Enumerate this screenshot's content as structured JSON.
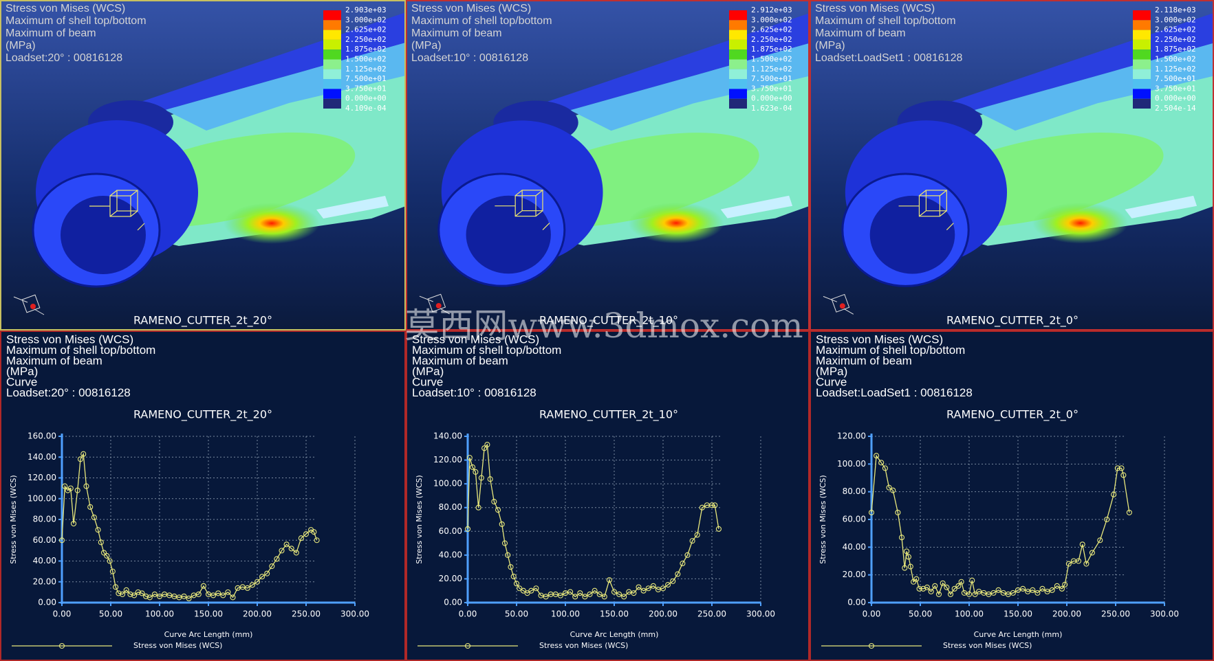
{
  "views": [
    {
      "header": [
        "Stress von Mises (WCS)",
        "Maximum of shell top/bottom",
        "Maximum of beam",
        "(MPa)",
        "Loadset:20° : 00816128"
      ],
      "legend_labels": [
        "2.903e+03",
        "3.000e+02",
        "2.625e+02",
        "2.250e+02",
        "1.875e+02",
        "1.500e+02",
        "1.125e+02",
        "7.500e+01",
        "3.750e+01",
        "0.000e+00",
        "4.109e-04"
      ],
      "caption": "RAMENO_CUTTER_2t_20°"
    },
    {
      "header": [
        "Stress von Mises (WCS)",
        "Maximum of shell top/bottom",
        "Maximum of beam",
        "(MPa)",
        "Loadset:10° : 00816128"
      ],
      "legend_labels": [
        "2.912e+03",
        "3.000e+02",
        "2.625e+02",
        "2.250e+02",
        "1.875e+02",
        "1.500e+02",
        "1.125e+02",
        "7.500e+01",
        "3.750e+01",
        "0.000e+00",
        "1.623e-04"
      ],
      "caption": "RAMENO_CUTTER_2t_10°"
    },
    {
      "header": [
        "Stress von Mises (WCS)",
        "Maximum of shell top/bottom",
        "Maximum of beam",
        "(MPa)",
        "Loadset:LoadSet1 : 00816128"
      ],
      "legend_labels": [
        "2.118e+03",
        "3.000e+02",
        "2.625e+02",
        "2.250e+02",
        "1.875e+02",
        "1.500e+02",
        "1.125e+02",
        "7.500e+01",
        "3.750e+01",
        "0.000e+00",
        "2.504e-14"
      ],
      "caption": "RAMENO_CUTTER_2t_0°"
    }
  ],
  "chart_data": [
    {
      "type": "line",
      "header": [
        "Stress von Mises (WCS)",
        "Maximum of shell top/bottom",
        "Maximum of beam",
        "(MPa)",
        "Curve",
        "Loadset:20° : 00816128"
      ],
      "title": "RAMENO_CUTTER_2t_20°",
      "x_label": "Curve Arc Length (mm)",
      "y_label": "Stress von Mises (WCS)",
      "x": [
        0,
        3,
        6,
        9,
        12,
        16,
        19,
        22,
        25,
        29,
        33,
        37,
        40,
        43,
        46,
        49,
        52,
        55,
        58,
        62,
        66,
        70,
        74,
        78,
        82,
        86,
        90,
        95,
        100,
        105,
        110,
        115,
        120,
        125,
        130,
        135,
        140,
        145,
        150,
        155,
        160,
        165,
        170,
        175,
        180,
        185,
        190,
        195,
        200,
        205,
        210,
        215,
        220,
        225,
        230,
        235,
        240,
        245,
        250,
        255,
        258,
        261
      ],
      "series": [
        {
          "name": "Stress von Mises (WCS)",
          "color": "#e8e87c",
          "values": [
            60,
            112,
            108,
            110,
            76,
            108,
            138,
            143,
            112,
            92,
            82,
            70,
            58,
            48,
            45,
            40,
            30,
            15,
            9,
            8,
            12,
            8,
            7,
            10,
            9,
            6,
            5,
            8,
            6,
            8,
            7,
            6,
            5,
            6,
            4,
            7,
            8,
            16,
            8,
            7,
            9,
            7,
            10,
            5,
            14,
            15,
            14,
            17,
            20,
            25,
            28,
            35,
            42,
            50,
            56,
            52,
            48,
            62,
            66,
            70,
            68,
            60
          ]
        }
      ],
      "xlim": [
        0,
        300
      ],
      "ylim": [
        0,
        160
      ],
      "xticks": [
        {
          "value": 0,
          "label": "0.00"
        },
        {
          "value": 50,
          "label": "50.00"
        },
        {
          "value": 100,
          "label": "100.00"
        },
        {
          "value": 150,
          "label": "150.00"
        },
        {
          "value": 200,
          "label": "200.00"
        },
        {
          "value": 250,
          "label": "250.00"
        },
        {
          "value": 300,
          "label": "300.00"
        }
      ],
      "yticks": [
        {
          "value": 0,
          "label": "0.00"
        },
        {
          "value": 20,
          "label": "20.00"
        },
        {
          "value": 40,
          "label": "40.00"
        },
        {
          "value": 60,
          "label": "60.00"
        },
        {
          "value": 80,
          "label": "80.00"
        },
        {
          "value": 100,
          "label": "100.00"
        },
        {
          "value": 120,
          "label": "120.00"
        },
        {
          "value": 140,
          "label": "140.00"
        },
        {
          "value": 160,
          "label": "160.00"
        }
      ],
      "grid": true
    },
    {
      "type": "line",
      "header": [
        "Stress von Mises (WCS)",
        "Maximum of shell top/bottom",
        "Maximum of beam",
        "(MPa)",
        "Curve",
        "Loadset:10° : 00816128"
      ],
      "title": "RAMENO_CUTTER_2t_10°",
      "x_label": "Curve Arc Length (mm)",
      "y_label": "Stress von Mises (WCS)",
      "x": [
        0,
        2,
        5,
        8,
        11,
        14,
        17,
        20,
        23,
        27,
        31,
        35,
        38,
        41,
        44,
        47,
        50,
        53,
        57,
        61,
        65,
        70,
        75,
        80,
        85,
        90,
        95,
        100,
        105,
        110,
        115,
        120,
        125,
        130,
        135,
        140,
        145,
        150,
        155,
        160,
        165,
        170,
        175,
        180,
        185,
        190,
        195,
        200,
        205,
        210,
        215,
        220,
        225,
        230,
        235,
        240,
        245,
        250,
        253,
        257
      ],
      "series": [
        {
          "name": "Stress von Mises (WCS)",
          "color": "#e8e87c",
          "values": [
            62,
            122,
            114,
            110,
            80,
            105,
            130,
            133,
            104,
            85,
            78,
            66,
            50,
            40,
            30,
            22,
            16,
            12,
            10,
            8,
            10,
            12,
            6,
            5,
            7,
            7,
            6,
            8,
            9,
            5,
            8,
            5,
            7,
            10,
            7,
            5,
            19,
            9,
            7,
            5,
            9,
            8,
            13,
            10,
            12,
            14,
            11,
            12,
            15,
            18,
            24,
            33,
            40,
            52,
            57,
            80,
            82,
            82,
            82,
            62
          ]
        }
      ],
      "xlim": [
        0,
        300
      ],
      "ylim": [
        0,
        140
      ],
      "xticks": [
        {
          "value": 0,
          "label": "0.00"
        },
        {
          "value": 50,
          "label": "50.00"
        },
        {
          "value": 100,
          "label": "100.00"
        },
        {
          "value": 150,
          "label": "150.00"
        },
        {
          "value": 200,
          "label": "200.00"
        },
        {
          "value": 250,
          "label": "250.00"
        },
        {
          "value": 300,
          "label": "300.00"
        }
      ],
      "yticks": [
        {
          "value": 0,
          "label": "0.00"
        },
        {
          "value": 20,
          "label": "20.00"
        },
        {
          "value": 40,
          "label": "40.00"
        },
        {
          "value": 60,
          "label": "60.00"
        },
        {
          "value": 80,
          "label": "80.00"
        },
        {
          "value": 100,
          "label": "100.00"
        },
        {
          "value": 120,
          "label": "120.00"
        },
        {
          "value": 140,
          "label": "140.00"
        }
      ],
      "grid": true
    },
    {
      "type": "line",
      "header": [
        "Stress von Mises (WCS)",
        "Maximum of shell top/bottom",
        "Maximum of beam",
        "(MPa)",
        "Curve",
        "Loadset:LoadSet1 : 00816128"
      ],
      "title": "RAMENO_CUTTER_2t_0°",
      "x_label": "Curve Arc Length (mm)",
      "y_label": "Stress von Mises (WCS)",
      "x": [
        0,
        5,
        10,
        14,
        18,
        22,
        27,
        31,
        34,
        36,
        38,
        40,
        43,
        46,
        49,
        53,
        57,
        61,
        65,
        69,
        73,
        77,
        81,
        85,
        89,
        92,
        95,
        100,
        103,
        106,
        110,
        115,
        120,
        125,
        130,
        135,
        140,
        145,
        150,
        155,
        160,
        165,
        170,
        175,
        180,
        185,
        190,
        195,
        198,
        202,
        207,
        212,
        216,
        220,
        226,
        234,
        241,
        248,
        252,
        256,
        258,
        264
      ],
      "series": [
        {
          "name": "Stress von Mises (WCS)",
          "color": "#e8e87c",
          "values": [
            65,
            106,
            101,
            97,
            83,
            81,
            65,
            47,
            25,
            37,
            33,
            26,
            15,
            17,
            10,
            10,
            11,
            8,
            12,
            6,
            14,
            11,
            6,
            10,
            12,
            15,
            7,
            6,
            16,
            6,
            8,
            7,
            6,
            7,
            9,
            7,
            6,
            7,
            9,
            10,
            8,
            9,
            7,
            10,
            8,
            9,
            12,
            10,
            13,
            28,
            30,
            30,
            42,
            28,
            36,
            45,
            60,
            78,
            97,
            97,
            92,
            65
          ]
        }
      ],
      "xlim": [
        0,
        300
      ],
      "ylim": [
        0,
        120
      ],
      "xticks": [
        {
          "value": 0,
          "label": "0.00"
        },
        {
          "value": 50,
          "label": "50.00"
        },
        {
          "value": 100,
          "label": "100.00"
        },
        {
          "value": 150,
          "label": "150.00"
        },
        {
          "value": 200,
          "label": "200.00"
        },
        {
          "value": 250,
          "label": "250.00"
        },
        {
          "value": 300,
          "label": "300.00"
        }
      ],
      "yticks": [
        {
          "value": 0,
          "label": "0.00"
        },
        {
          "value": 20,
          "label": "20.00"
        },
        {
          "value": 40,
          "label": "40.00"
        },
        {
          "value": 60,
          "label": "60.00"
        },
        {
          "value": 80,
          "label": "80.00"
        },
        {
          "value": 100,
          "label": "100.00"
        },
        {
          "value": 120,
          "label": "120.00"
        }
      ],
      "grid": true
    }
  ],
  "watermark": "莫西网www.3dmox.com"
}
